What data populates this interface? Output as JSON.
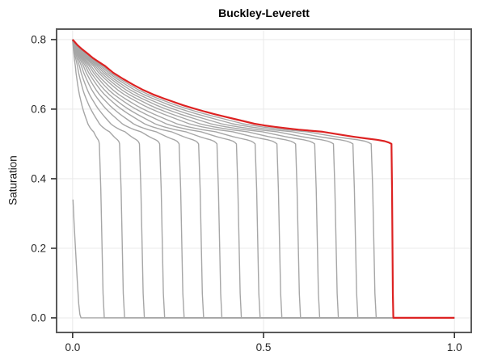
{
  "chart_data": {
    "type": "line",
    "title": "Buckley-Leverett",
    "xlabel": "",
    "ylabel": "Saturation",
    "x_ticks": [
      0.0,
      0.5,
      1.0
    ],
    "x_tick_labels": [
      "0.0",
      "0.5",
      "1.0"
    ],
    "y_ticks": [
      0.0,
      0.2,
      0.4,
      0.6,
      0.8
    ],
    "y_tick_labels": [
      "0.0",
      "0.2",
      "0.4",
      "0.6",
      "0.8"
    ],
    "xlim": [
      -0.042,
      1.044
    ],
    "ylim": [
      -0.042,
      0.83
    ],
    "grid": true,
    "legend": "none",
    "description": "Buckley-Leverett water saturation profiles S(x) at successive times. Gray curves are earlier snapshots, red curve is the final time. Each profile is a self-similar rarefaction from inlet saturation 0.8 down to the shock-front saturation ~0.5, followed by a sharp shock drop to 0, then S=0 out to x=1.",
    "inlet_saturation": 0.8,
    "front_saturation": 0.5,
    "n_profiles": 17,
    "master_profile": {
      "comment": "Final (red) profile; earlier gray profiles are this curve scaled horizontally by front/red_front, ending in a shock drop to S=0.",
      "x": [
        0.0,
        0.012,
        0.025,
        0.04,
        0.053,
        0.068,
        0.085,
        0.106,
        0.132,
        0.159,
        0.185,
        0.211,
        0.238,
        0.264,
        0.29,
        0.317,
        0.343,
        0.37,
        0.396,
        0.423,
        0.45,
        0.476,
        0.503,
        0.529,
        0.56,
        0.592,
        0.623,
        0.655,
        0.694,
        0.734,
        0.766,
        0.797,
        0.817,
        0.828,
        0.835
      ],
      "S": [
        0.8,
        0.785,
        0.772,
        0.759,
        0.747,
        0.736,
        0.724,
        0.705,
        0.687,
        0.67,
        0.655,
        0.642,
        0.631,
        0.621,
        0.611,
        0.602,
        0.594,
        0.586,
        0.579,
        0.572,
        0.565,
        0.558,
        0.553,
        0.549,
        0.545,
        0.541,
        0.538,
        0.535,
        0.528,
        0.521,
        0.516,
        0.512,
        0.508,
        0.504,
        0.5
      ]
    },
    "initial_curve": {
      "comment": "Earliest short snapshot near the inlet.",
      "x": [
        0.001,
        0.004,
        0.008,
        0.012,
        0.016,
        0.019,
        0.022
      ],
      "S": [
        0.34,
        0.27,
        0.19,
        0.11,
        0.04,
        0.01,
        0.0
      ]
    },
    "gray_fronts": [
      0.07,
      0.123,
      0.175,
      0.228,
      0.279,
      0.33,
      0.378,
      0.429,
      0.478,
      0.535,
      0.584,
      0.634,
      0.683,
      0.734,
      0.782
    ],
    "red_front": 0.835,
    "shock_drop_width": 0.013,
    "x_end": 1.0,
    "colors": {
      "profile_gray": "#a6a6a6",
      "profile_red": "#dd2222",
      "grid": "#e9e9e9",
      "frame": "#5a5a5a",
      "tick": "#333333",
      "tick_text": "#262626",
      "background": "#ffffff"
    }
  }
}
